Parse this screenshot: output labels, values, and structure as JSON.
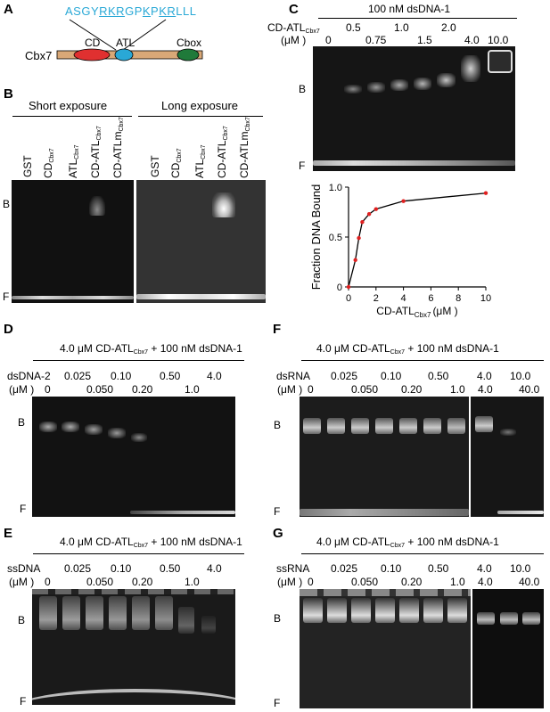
{
  "panelA": {
    "letter": "A",
    "protein": "Cbx7",
    "seq_pre": "ASGY",
    "seq_u1": "RKR",
    "seq_mid1": "GP",
    "seq_u2": "K",
    "seq_mid2": "P",
    "seq_u3": "KR",
    "seq_post": "LLL",
    "domains": [
      "CD",
      "ATL",
      "Cbox"
    ],
    "colors": {
      "sequence": "#29a8d6",
      "cd": "#e03030",
      "atl": "#29a8d6",
      "cbox": "#1f7a3a",
      "bar": "#d9a877"
    }
  },
  "panelB": {
    "letter": "B",
    "short": "Short exposure",
    "long": "Long exposure",
    "lanes": [
      {
        "main": "GST",
        "sub": ""
      },
      {
        "main": "CD",
        "sub": "Cbx7"
      },
      {
        "main": "ATL",
        "sub": "Cbx7"
      },
      {
        "main": "CD-ATL",
        "sub": "Cbx7"
      },
      {
        "main": "CD-ATLm",
        "sub": "Cbx7"
      }
    ],
    "b": "B",
    "f": "F"
  },
  "panelC": {
    "letter": "C",
    "header": "100 nM dsDNA-1",
    "conc_main": "CD-ATL",
    "conc_sub": "Cbx7",
    "unit": "(μM )",
    "top_row": [
      "0.5",
      "1.0",
      "2.0"
    ],
    "bottom_row": [
      "0",
      "0.75",
      "1.5",
      "4.0",
      "10.0"
    ],
    "b": "B",
    "f": "F"
  },
  "chart_data": {
    "type": "scatter",
    "title": "",
    "xlabel": "CD-ATLCbx7 (μM )",
    "xlabel_main": "CD-ATL",
    "xlabel_sub": "Cbx7",
    "xlabel_unit": "(μM )",
    "ylabel": "Fraction DNA Bound",
    "x": [
      0,
      0.5,
      0.75,
      1.0,
      1.5,
      2.0,
      4.0,
      10.0
    ],
    "y": [
      0.0,
      0.27,
      0.49,
      0.65,
      0.73,
      0.78,
      0.86,
      0.94
    ],
    "xlim": [
      0,
      10
    ],
    "ylim": [
      0,
      1.0
    ],
    "xticks": [
      "0",
      "2",
      "4",
      "6",
      "8",
      "10"
    ],
    "yticks": [
      "0",
      "0.5",
      "1.0"
    ],
    "point_color": "#e02020"
  },
  "panelD": {
    "letter": "D",
    "header_pre": "4.0 μM CD-ATL",
    "header_sub": "Cbx7",
    "header_post": " + 100 nM dsDNA-1",
    "comp": "dsDNA-2",
    "unit": "(μM )",
    "top_row": [
      "0.025",
      "0.10",
      "0.50",
      "4.0"
    ],
    "bottom_row": [
      "0",
      "0.050",
      "0.20",
      "1.0"
    ],
    "b": "B",
    "f": "F"
  },
  "panelE": {
    "letter": "E",
    "header_pre": "4.0 μM CD-ATL",
    "header_sub": "Cbx7",
    "header_post": " + 100 nM dsDNA-1",
    "comp": "ssDNA",
    "unit": "(μM )",
    "top_row": [
      "0.025",
      "0.10",
      "0.50",
      "4.0"
    ],
    "bottom_row": [
      "0",
      "0.050",
      "0.20",
      "1.0"
    ],
    "b": "B",
    "f": "F"
  },
  "panelF": {
    "letter": "F",
    "header_pre": "4.0 μM CD-ATL",
    "header_sub": "Cbx7",
    "header_post": " + 100 nM dsDNA-1",
    "comp": "dsRNA",
    "unit": "(μM )",
    "top_row": [
      "0.025",
      "0.10",
      "0.50",
      "4.0",
      "10.0"
    ],
    "bottom_row": [
      "0",
      "0.050",
      "0.20",
      "1.0",
      "4.0",
      "40.0"
    ],
    "b": "B",
    "f": "F"
  },
  "panelG": {
    "letter": "G",
    "header_pre": "4.0 μM CD-ATL",
    "header_sub": "Cbx7",
    "header_post": " + 100 nM dsDNA-1",
    "comp": "ssRNA",
    "unit": "(μM )",
    "top_row": [
      "0.025",
      "0.10",
      "0.50",
      "4.0",
      "10.0"
    ],
    "bottom_row": [
      "0",
      "0.050",
      "0.20",
      "1.0",
      "4.0",
      "40.0"
    ],
    "b": "B",
    "f": "F"
  }
}
